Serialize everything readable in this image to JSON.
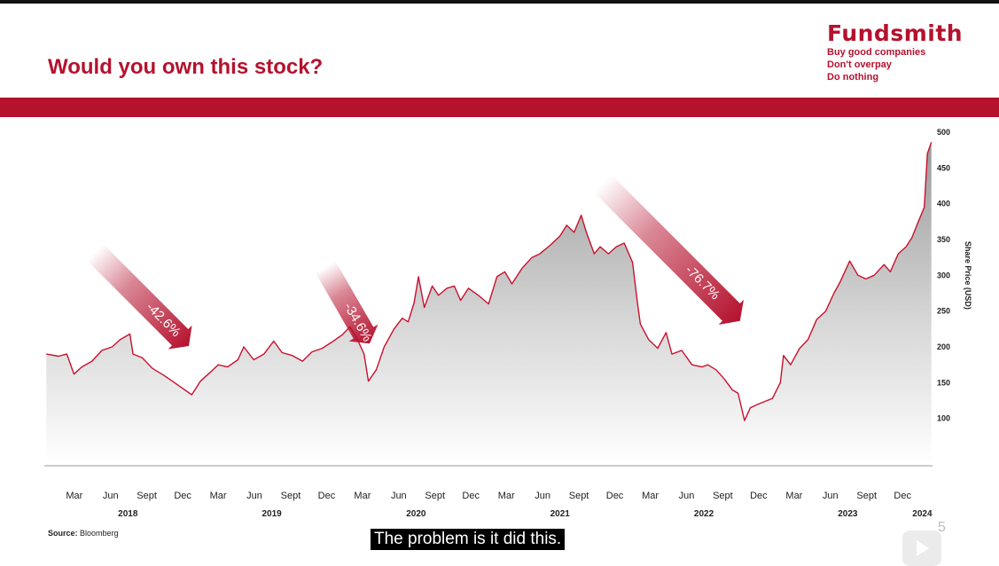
{
  "slide": {
    "title": "Would you own this stock?",
    "source_label": "Source:",
    "source_value": "Bloomberg",
    "subtitle": "The problem is it did this.",
    "page_number": "5"
  },
  "logo": {
    "name": "Fundsmith",
    "taglines": [
      "Buy good companies",
      "Don't overpay",
      "Do nothing"
    ]
  },
  "colors": {
    "brand": "#b5122e",
    "line": "#c8102e"
  },
  "chart_data": {
    "type": "area",
    "title": "",
    "xlabel": "",
    "ylabel": "Share Price (USD)",
    "y_axis_side": "right",
    "ylim": [
      50,
      500
    ],
    "yticks": [
      100,
      150,
      200,
      250,
      300,
      350,
      400,
      450,
      500
    ],
    "xlim": [
      "2017-12-15",
      "2024-02-15"
    ],
    "month_ticks": [
      {
        "label": "Mar",
        "date": "2018-03-01"
      },
      {
        "label": "Jun",
        "date": "2018-06-01"
      },
      {
        "label": "Sept",
        "date": "2018-09-01"
      },
      {
        "label": "Dec",
        "date": "2018-12-01"
      },
      {
        "label": "Mar",
        "date": "2019-03-01"
      },
      {
        "label": "Jun",
        "date": "2019-06-01"
      },
      {
        "label": "Sept",
        "date": "2019-09-01"
      },
      {
        "label": "Dec",
        "date": "2019-12-01"
      },
      {
        "label": "Mar",
        "date": "2020-03-01"
      },
      {
        "label": "Jun",
        "date": "2020-06-01"
      },
      {
        "label": "Sept",
        "date": "2020-09-01"
      },
      {
        "label": "Dec",
        "date": "2020-12-01"
      },
      {
        "label": "Mar",
        "date": "2021-03-01"
      },
      {
        "label": "Jun",
        "date": "2021-06-01"
      },
      {
        "label": "Sept",
        "date": "2021-09-01"
      },
      {
        "label": "Dec",
        "date": "2021-12-01"
      },
      {
        "label": "Mar",
        "date": "2022-03-01"
      },
      {
        "label": "Jun",
        "date": "2022-06-01"
      },
      {
        "label": "Sept",
        "date": "2022-09-01"
      },
      {
        "label": "Dec",
        "date": "2022-12-01"
      },
      {
        "label": "Mar",
        "date": "2023-03-01"
      },
      {
        "label": "Jun",
        "date": "2023-06-01"
      },
      {
        "label": "Sept",
        "date": "2023-09-01"
      },
      {
        "label": "Dec",
        "date": "2023-12-01"
      }
    ],
    "year_labels": [
      {
        "label": "2018",
        "date": "2018-07-15"
      },
      {
        "label": "2019",
        "date": "2019-07-15"
      },
      {
        "label": "2020",
        "date": "2020-07-15"
      },
      {
        "label": "2021",
        "date": "2021-07-15"
      },
      {
        "label": "2022",
        "date": "2022-07-15"
      },
      {
        "label": "2023",
        "date": "2023-07-15"
      },
      {
        "label": "2024",
        "date": "2024-01-20"
      }
    ],
    "series": [
      {
        "points": [
          [
            "2017-12-20",
            190
          ],
          [
            "2018-01-20",
            187
          ],
          [
            "2018-02-10",
            190
          ],
          [
            "2018-02-28",
            162
          ],
          [
            "2018-03-20",
            172
          ],
          [
            "2018-04-15",
            180
          ],
          [
            "2018-05-10",
            195
          ],
          [
            "2018-06-05",
            200
          ],
          [
            "2018-06-25",
            210
          ],
          [
            "2018-07-20",
            218
          ],
          [
            "2018-07-28",
            190
          ],
          [
            "2018-08-20",
            185
          ],
          [
            "2018-09-15",
            170
          ],
          [
            "2018-10-15",
            160
          ],
          [
            "2018-11-10",
            150
          ],
          [
            "2018-12-01",
            142
          ],
          [
            "2018-12-24",
            133
          ],
          [
            "2019-01-15",
            152
          ],
          [
            "2019-02-10",
            165
          ],
          [
            "2019-03-01",
            175
          ],
          [
            "2019-03-25",
            172
          ],
          [
            "2019-04-20",
            182
          ],
          [
            "2019-05-05",
            200
          ],
          [
            "2019-05-30",
            182
          ],
          [
            "2019-06-25",
            190
          ],
          [
            "2019-07-20",
            208
          ],
          [
            "2019-08-10",
            192
          ],
          [
            "2019-09-05",
            188
          ],
          [
            "2019-10-01",
            180
          ],
          [
            "2019-10-25",
            193
          ],
          [
            "2019-11-20",
            198
          ],
          [
            "2019-12-15",
            207
          ],
          [
            "2020-01-10",
            217
          ],
          [
            "2020-01-29",
            228
          ],
          [
            "2020-02-15",
            213
          ],
          [
            "2020-03-05",
            190
          ],
          [
            "2020-03-16",
            152
          ],
          [
            "2020-04-05",
            168
          ],
          [
            "2020-04-25",
            200
          ],
          [
            "2020-05-20",
            225
          ],
          [
            "2020-06-10",
            240
          ],
          [
            "2020-06-25",
            235
          ],
          [
            "2020-07-10",
            262
          ],
          [
            "2020-07-21",
            298
          ],
          [
            "2020-08-05",
            255
          ],
          [
            "2020-08-25",
            285
          ],
          [
            "2020-09-10",
            272
          ],
          [
            "2020-10-01",
            282
          ],
          [
            "2020-10-20",
            285
          ],
          [
            "2020-11-05",
            265
          ],
          [
            "2020-11-25",
            282
          ],
          [
            "2020-12-20",
            272
          ],
          [
            "2021-01-15",
            260
          ],
          [
            "2021-02-05",
            298
          ],
          [
            "2021-02-25",
            305
          ],
          [
            "2021-03-15",
            288
          ],
          [
            "2021-04-10",
            310
          ],
          [
            "2021-05-05",
            325
          ],
          [
            "2021-05-25",
            330
          ],
          [
            "2021-06-20",
            342
          ],
          [
            "2021-07-15",
            355
          ],
          [
            "2021-08-01",
            370
          ],
          [
            "2021-08-20",
            360
          ],
          [
            "2021-09-07",
            384
          ],
          [
            "2021-09-20",
            360
          ],
          [
            "2021-10-10",
            330
          ],
          [
            "2021-10-25",
            340
          ],
          [
            "2021-11-15",
            330
          ],
          [
            "2021-12-05",
            340
          ],
          [
            "2021-12-25",
            345
          ],
          [
            "2022-01-15",
            318
          ],
          [
            "2022-01-28",
            260
          ],
          [
            "2022-02-04",
            232
          ],
          [
            "2022-02-25",
            210
          ],
          [
            "2022-03-20",
            198
          ],
          [
            "2022-04-10",
            220
          ],
          [
            "2022-04-25",
            190
          ],
          [
            "2022-05-20",
            195
          ],
          [
            "2022-06-15",
            175
          ],
          [
            "2022-07-10",
            172
          ],
          [
            "2022-07-25",
            175
          ],
          [
            "2022-08-15",
            168
          ],
          [
            "2022-09-05",
            155
          ],
          [
            "2022-09-25",
            140
          ],
          [
            "2022-10-10",
            135
          ],
          [
            "2022-10-26",
            97
          ],
          [
            "2022-11-10",
            115
          ],
          [
            "2022-11-30",
            120
          ],
          [
            "2023-01-05",
            128
          ],
          [
            "2023-01-25",
            150
          ],
          [
            "2023-02-02",
            188
          ],
          [
            "2023-02-20",
            175
          ],
          [
            "2023-03-15",
            198
          ],
          [
            "2023-04-05",
            210
          ],
          [
            "2023-04-27",
            238
          ],
          [
            "2023-05-20",
            250
          ],
          [
            "2023-06-10",
            275
          ],
          [
            "2023-06-25",
            290
          ],
          [
            "2023-07-20",
            320
          ],
          [
            "2023-08-10",
            300
          ],
          [
            "2023-08-30",
            295
          ],
          [
            "2023-09-20",
            300
          ],
          [
            "2023-10-15",
            315
          ],
          [
            "2023-10-31",
            305
          ],
          [
            "2023-11-20",
            330
          ],
          [
            "2023-12-10",
            340
          ],
          [
            "2023-12-25",
            353
          ],
          [
            "2024-01-10",
            375
          ],
          [
            "2024-01-25",
            395
          ],
          [
            "2024-02-02",
            470
          ],
          [
            "2024-02-12",
            486
          ]
        ]
      }
    ],
    "annotations": [
      {
        "text": "-42.6%"
      },
      {
        "text": "-34.6%"
      },
      {
        "text": "-76.7%"
      }
    ]
  }
}
